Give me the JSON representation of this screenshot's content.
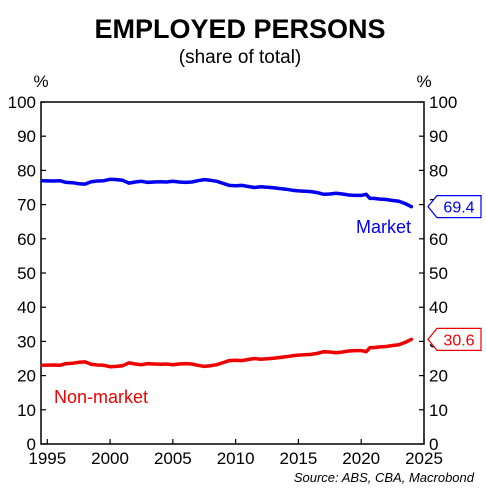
{
  "chart_data": {
    "type": "line",
    "title": "EMPLOYED PERSONS",
    "subtitle": "(share of total)",
    "y_unit_left": "%",
    "y_unit_right": "%",
    "source": "Source: ABS, CBA, Macrobond",
    "xlim": [
      1994.5,
      2025
    ],
    "ylim": [
      0,
      100
    ],
    "x_ticks": [
      1995,
      2000,
      2005,
      2010,
      2015,
      2020,
      2025
    ],
    "y_ticks": [
      0,
      10,
      20,
      30,
      40,
      50,
      60,
      70,
      80,
      90,
      100
    ],
    "grid": false,
    "series": [
      {
        "name": "Market",
        "color": "#0000ee",
        "label_text": "Market",
        "end_label": "69.4",
        "points": [
          [
            1994.6,
            77.0
          ],
          [
            1995.5,
            76.9
          ],
          [
            1996.0,
            77.0
          ],
          [
            1996.5,
            76.5
          ],
          [
            1997.0,
            76.4
          ],
          [
            1997.5,
            76.1
          ],
          [
            1998.0,
            76.0
          ],
          [
            1998.5,
            76.7
          ],
          [
            1999.0,
            76.9
          ],
          [
            1999.5,
            77.0
          ],
          [
            2000.0,
            77.4
          ],
          [
            2000.5,
            77.3
          ],
          [
            2001.0,
            77.1
          ],
          [
            2001.5,
            76.3
          ],
          [
            2002.0,
            76.6
          ],
          [
            2002.5,
            76.8
          ],
          [
            2003.0,
            76.5
          ],
          [
            2003.5,
            76.6
          ],
          [
            2004.0,
            76.7
          ],
          [
            2004.5,
            76.6
          ],
          [
            2005.0,
            76.8
          ],
          [
            2005.5,
            76.6
          ],
          [
            2006.0,
            76.5
          ],
          [
            2006.5,
            76.6
          ],
          [
            2007.0,
            77.0
          ],
          [
            2007.5,
            77.3
          ],
          [
            2008.0,
            77.1
          ],
          [
            2008.5,
            76.8
          ],
          [
            2009.0,
            76.2
          ],
          [
            2009.5,
            75.6
          ],
          [
            2010.0,
            75.5
          ],
          [
            2010.5,
            75.6
          ],
          [
            2011.0,
            75.3
          ],
          [
            2011.5,
            75.0
          ],
          [
            2012.0,
            75.2
          ],
          [
            2012.5,
            75.1
          ],
          [
            2013.0,
            74.9
          ],
          [
            2013.5,
            74.7
          ],
          [
            2014.0,
            74.5
          ],
          [
            2014.5,
            74.2
          ],
          [
            2015.0,
            74.0
          ],
          [
            2015.5,
            73.9
          ],
          [
            2016.0,
            73.8
          ],
          [
            2016.5,
            73.5
          ],
          [
            2017.0,
            73.0
          ],
          [
            2017.5,
            73.1
          ],
          [
            2018.0,
            73.3
          ],
          [
            2018.5,
            73.1
          ],
          [
            2019.0,
            72.8
          ],
          [
            2019.5,
            72.7
          ],
          [
            2020.0,
            72.7
          ],
          [
            2020.4,
            73.0
          ],
          [
            2020.7,
            71.8
          ],
          [
            2021.0,
            71.8
          ],
          [
            2021.5,
            71.6
          ],
          [
            2022.0,
            71.5
          ],
          [
            2022.5,
            71.2
          ],
          [
            2023.0,
            71.0
          ],
          [
            2023.5,
            70.3
          ],
          [
            2024.0,
            69.4
          ]
        ]
      },
      {
        "name": "Non-market",
        "color": "#ee0000",
        "label_text": "Non-market",
        "end_label": "30.6",
        "points": [
          [
            1994.6,
            23.0
          ],
          [
            1995.5,
            23.1
          ],
          [
            1996.0,
            23.0
          ],
          [
            1996.5,
            23.5
          ],
          [
            1997.0,
            23.6
          ],
          [
            1997.5,
            23.9
          ],
          [
            1998.0,
            24.0
          ],
          [
            1998.5,
            23.3
          ],
          [
            1999.0,
            23.1
          ],
          [
            1999.5,
            23.0
          ],
          [
            2000.0,
            22.6
          ],
          [
            2000.5,
            22.7
          ],
          [
            2001.0,
            22.9
          ],
          [
            2001.5,
            23.7
          ],
          [
            2002.0,
            23.4
          ],
          [
            2002.5,
            23.2
          ],
          [
            2003.0,
            23.5
          ],
          [
            2003.5,
            23.4
          ],
          [
            2004.0,
            23.3
          ],
          [
            2004.5,
            23.4
          ],
          [
            2005.0,
            23.2
          ],
          [
            2005.5,
            23.4
          ],
          [
            2006.0,
            23.5
          ],
          [
            2006.5,
            23.4
          ],
          [
            2007.0,
            23.0
          ],
          [
            2007.5,
            22.7
          ],
          [
            2008.0,
            22.9
          ],
          [
            2008.5,
            23.2
          ],
          [
            2009.0,
            23.8
          ],
          [
            2009.5,
            24.4
          ],
          [
            2010.0,
            24.5
          ],
          [
            2010.5,
            24.4
          ],
          [
            2011.0,
            24.7
          ],
          [
            2011.5,
            25.0
          ],
          [
            2012.0,
            24.8
          ],
          [
            2012.5,
            24.9
          ],
          [
            2013.0,
            25.1
          ],
          [
            2013.5,
            25.3
          ],
          [
            2014.0,
            25.5
          ],
          [
            2014.5,
            25.8
          ],
          [
            2015.0,
            26.0
          ],
          [
            2015.5,
            26.1
          ],
          [
            2016.0,
            26.2
          ],
          [
            2016.5,
            26.5
          ],
          [
            2017.0,
            27.0
          ],
          [
            2017.5,
            26.9
          ],
          [
            2018.0,
            26.7
          ],
          [
            2018.5,
            26.9
          ],
          [
            2019.0,
            27.2
          ],
          [
            2019.5,
            27.3
          ],
          [
            2020.0,
            27.3
          ],
          [
            2020.4,
            27.0
          ],
          [
            2020.7,
            28.2
          ],
          [
            2021.0,
            28.2
          ],
          [
            2021.5,
            28.4
          ],
          [
            2022.0,
            28.5
          ],
          [
            2022.5,
            28.8
          ],
          [
            2023.0,
            29.0
          ],
          [
            2023.5,
            29.7
          ],
          [
            2024.0,
            30.6
          ]
        ]
      }
    ]
  }
}
